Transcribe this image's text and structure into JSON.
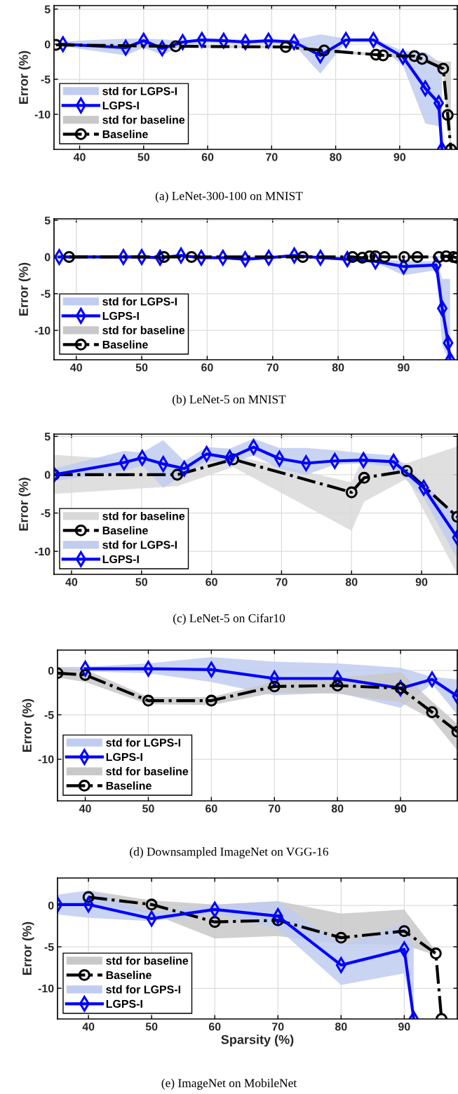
{
  "chart_data": [
    {
      "type": "line",
      "title": "(a) LeNet-300-100 on MNIST",
      "ylabel": "Error (%)",
      "xlim": [
        36,
        99
      ],
      "ylim": [
        -15,
        5.5
      ],
      "xticks": [
        40,
        50,
        60,
        70,
        80,
        90
      ],
      "yticks": [
        -10,
        -5,
        0,
        5
      ],
      "grid": true,
      "legend": "bottom left",
      "series": [
        {
          "name": "std for LGPS-I",
          "type": "area",
          "color": "#c0ccf0",
          "x": [
            37.4,
            47.2,
            50,
            52.9,
            56.1,
            59.1,
            62.5,
            65.9,
            69.5,
            73.5,
            77.6,
            81.6,
            85.9,
            90.5,
            94.0,
            96.1,
            96.6
          ],
          "values": [
            null,
            null,
            null,
            null,
            null,
            null,
            null,
            null,
            null,
            null,
            null,
            null,
            null,
            null,
            null,
            null,
            null
          ],
          "lower": [
            -0.3,
            -1.6,
            -0.5,
            -1.5,
            -0.3,
            0.2,
            0.1,
            0,
            0.1,
            -0.1,
            -4.2,
            0.3,
            0.2,
            -3.0,
            -11.3,
            -11.7,
            -15
          ],
          "upper": [
            0.4,
            0.8,
            0.8,
            0.7,
            0.5,
            0.9,
            0.8,
            0.6,
            0.8,
            0.6,
            1.4,
            0.8,
            0.9,
            -1.0,
            -1.1,
            -2.5,
            -2.5
          ]
        },
        {
          "name": "LGPS-I",
          "color": "#0000ff",
          "marker": "diamond",
          "line_style": "solid",
          "x": [
            37.4,
            47.2,
            50,
            52.9,
            56.1,
            59.1,
            62.5,
            65.9,
            69.5,
            73.5,
            77.6,
            81.6,
            85.9,
            90.5,
            94.0,
            96.1,
            96.6
          ],
          "values": [
            0,
            -0.5,
            0.5,
            -0.6,
            0.3,
            0.6,
            0.5,
            0.3,
            0.5,
            0.3,
            -1.6,
            0.6,
            0.6,
            -1.8,
            -6.3,
            -8.4,
            -15
          ]
        },
        {
          "name": "std for baseline",
          "type": "area",
          "color": "#c8c8c8",
          "x": [
            36.3,
            55.0,
            72.2,
            78.2,
            86.3,
            87.4,
            92.3,
            93.5,
            96.8,
            97.5,
            98.0
          ],
          "values": [
            null,
            null,
            null,
            null,
            null,
            null,
            null,
            null,
            null,
            null,
            null
          ],
          "lower": [
            -0.3,
            -0.5,
            -0.6,
            -1.1,
            -1.7,
            -1.8,
            -1.9,
            -2.3,
            -3.8,
            -12,
            -15
          ],
          "upper": [
            0.1,
            -0.1,
            -0.2,
            -0.7,
            -1.3,
            -1.4,
            -1.5,
            -1.9,
            -2.5,
            -2.5,
            -2.5
          ]
        },
        {
          "name": "Baseline",
          "color": "#000000",
          "marker": "circle",
          "line_style": "dashdot",
          "x": [
            36.3,
            55.0,
            72.2,
            78.2,
            86.3,
            87.4,
            92.3,
            93.5,
            96.8,
            97.5,
            98.0
          ],
          "values": [
            -0.1,
            -0.3,
            -0.4,
            -0.9,
            -1.5,
            -1.6,
            -1.7,
            -2.1,
            -3.5,
            -10.1,
            -15
          ]
        }
      ]
    },
    {
      "type": "line",
      "title": "(b) LeNet-5 on MNIST",
      "ylabel": "Error (%)",
      "xlim": [
        36.6,
        98.2
      ],
      "ylim": [
        -14,
        5.2
      ],
      "xticks": [
        40,
        50,
        60,
        70,
        80,
        90
      ],
      "yticks": [
        -10,
        -5,
        0,
        5
      ],
      "grid": true,
      "legend": "bottom left",
      "series": [
        {
          "name": "std for LGPS-I",
          "type": "area",
          "color": "#c0ccf0",
          "x": [
            37.4,
            47.2,
            50,
            52.8,
            56.0,
            59.1,
            62.4,
            65.8,
            69.4,
            73.3,
            77.3,
            81.4,
            85.7,
            90,
            95.0,
            95.9,
            96.8,
            97.1
          ],
          "values": [
            null,
            null,
            null,
            null,
            null,
            null,
            null,
            null,
            null,
            null,
            null,
            null,
            null,
            null,
            null,
            null,
            null,
            null
          ],
          "lower": [
            -0.2,
            -0.2,
            -0.2,
            -0.3,
            0,
            -0.3,
            -0.3,
            -0.5,
            -0.3,
            0,
            -0.3,
            -0.5,
            -0.8,
            -2.5,
            -1.8,
            -12,
            -14,
            -14
          ],
          "upper": [
            0.2,
            0.2,
            0.2,
            0.1,
            0.4,
            0.1,
            0.1,
            -0.1,
            0.1,
            0.4,
            0.1,
            -0.1,
            -0.4,
            -0.5,
            -0.6,
            -3,
            -3,
            -3
          ]
        },
        {
          "name": "LGPS-I",
          "color": "#0000ff",
          "marker": "diamond",
          "line_style": "solid",
          "x": [
            37.4,
            47.2,
            50,
            52.8,
            56.0,
            59.1,
            62.4,
            65.8,
            69.4,
            73.3,
            77.3,
            81.4,
            85.7,
            90,
            95.0,
            95.9,
            96.8,
            97.1
          ],
          "values": [
            0,
            0,
            0,
            -0.1,
            0.2,
            -0.1,
            -0.1,
            -0.3,
            -0.1,
            0.2,
            -0.1,
            -0.3,
            -0.6,
            -1.3,
            -1.1,
            -7.0,
            -11.7,
            -14
          ]
        },
        {
          "name": "std for baseline",
          "type": "area",
          "color": "#c8c8c8",
          "x": [
            38.9,
            53.4,
            57.6,
            74.6,
            82.2,
            83.7,
            84.8,
            85.7,
            87.1,
            90.1,
            92.1,
            95.4,
            96.5,
            97.6,
            98.1
          ],
          "values": [
            null,
            null,
            null,
            null,
            null,
            null,
            null,
            null,
            null,
            null,
            null,
            null,
            null,
            null,
            null
          ],
          "lower": [
            -0.1,
            -0.1,
            -0.1,
            -0.1,
            -0.1,
            -0.2,
            0,
            0,
            -0.1,
            -0.1,
            -0.1,
            -0.1,
            0,
            -0.1,
            -0.2
          ],
          "upper": [
            0.1,
            0.1,
            0.1,
            0.1,
            0.1,
            0,
            0.2,
            0.2,
            0.1,
            0.1,
            0.1,
            0.1,
            0.2,
            0.1,
            0
          ]
        },
        {
          "name": "Baseline",
          "color": "#000000",
          "marker": "circle",
          "line_style": "dashdot",
          "x": [
            38.9,
            53.4,
            57.6,
            74.6,
            82.2,
            83.7,
            84.8,
            85.7,
            87.1,
            90.1,
            92.1,
            95.4,
            96.5,
            97.6,
            98.1
          ],
          "values": [
            0,
            0,
            0,
            0,
            0,
            -0.1,
            0.1,
            0.1,
            0,
            0,
            0,
            0,
            0.1,
            0,
            -0.1
          ]
        }
      ]
    },
    {
      "type": "line",
      "title": "(c) LeNet-5 on Cifar10",
      "ylabel": "Error (%)",
      "xlim": [
        37.5,
        95.1
      ],
      "ylim": [
        -13,
        5.3
      ],
      "xticks": [
        40,
        50,
        60,
        70,
        80,
        90
      ],
      "yticks": [
        -10,
        -5,
        0,
        5
      ],
      "grid": true,
      "legend": "bottom left",
      "series": [
        {
          "name": "std for baseline",
          "type": "area",
          "color": "#d9d9d9",
          "x": [
            37.5,
            55.1,
            63.1,
            80.0,
            81.8,
            87.9,
            95.1
          ],
          "values": [
            null,
            null,
            null,
            null,
            null,
            null,
            null
          ],
          "lower": [
            -2.5,
            -1.5,
            1.0,
            -7.3,
            -3.5,
            -0.5,
            -13
          ],
          "upper": [
            2.6,
            1.5,
            2.5,
            -1.0,
            2.5,
            1.5,
            3.7
          ]
        },
        {
          "name": "Baseline",
          "color": "#000000",
          "marker": "circle",
          "line_style": "dashdot",
          "x": [
            37.5,
            55.1,
            63.1,
            80.0,
            81.8,
            87.9,
            95.1
          ],
          "values": [
            0,
            0,
            2.0,
            -2.3,
            -0.4,
            0.5,
            -5.5
          ]
        },
        {
          "name": "std for LGPS-I",
          "type": "area",
          "color": "#c0ccf0",
          "x": [
            37.5,
            47.5,
            50.1,
            53.1,
            56.1,
            59.3,
            62.6,
            66.0,
            69.7,
            73.5,
            77.6,
            81.7,
            86.0,
            90.3,
            95.1
          ],
          "values": [
            null,
            null,
            null,
            null,
            null,
            null,
            null,
            null,
            null,
            null,
            null,
            null,
            null,
            null,
            null
          ],
          "lower": [
            -0.8,
            0.5,
            1.2,
            -1.7,
            0,
            1.8,
            1.5,
            2.5,
            0.8,
            0,
            1.3,
            1.5,
            1.0,
            -3.0,
            -11
          ],
          "upper": [
            0.8,
            3.1,
            2.9,
            4.5,
            1.8,
            3.6,
            3.4,
            4.7,
            3.5,
            3.5,
            3.2,
            2.8,
            2.5,
            -1.0,
            -5.5
          ]
        },
        {
          "name": "LGPS-I",
          "color": "#0000ff",
          "marker": "diamond",
          "line_style": "solid",
          "x": [
            37.5,
            47.5,
            50.1,
            53.1,
            56.1,
            59.3,
            62.6,
            66.0,
            69.7,
            73.5,
            77.6,
            81.7,
            86.0,
            90.3,
            95.1
          ],
          "values": [
            0,
            1.6,
            2.2,
            1.4,
            0.8,
            2.7,
            2.2,
            3.6,
            2.1,
            1.5,
            1.8,
            1.9,
            1.7,
            -1.7,
            -8.2
          ]
        }
      ]
    },
    {
      "type": "line",
      "title": "(d) Downsampled ImageNet on VGG-16",
      "ylabel": "Error (%)",
      "xlim": [
        35.6,
        99
      ],
      "ylim": [
        -14.7,
        2.3
      ],
      "xticks": [
        40,
        50,
        60,
        70,
        80,
        90
      ],
      "yticks": [
        -10,
        -5,
        0
      ],
      "grid": true,
      "legend": "bottom left",
      "series": [
        {
          "name": "std for LGPS-I",
          "type": "area",
          "color": "#c0ccf0",
          "x": [
            35.6,
            40,
            50,
            60,
            70,
            80,
            90,
            95,
            99
          ],
          "values": [
            null,
            null,
            null,
            null,
            null,
            null,
            null,
            null,
            null
          ],
          "lower": [
            -0.1,
            -0.1,
            -0.3,
            -1.3,
            -2.8,
            -2.5,
            -4.2,
            -1.5,
            -5
          ],
          "upper": [
            0.4,
            0.4,
            0.8,
            1.5,
            1.0,
            0.8,
            0.3,
            -0.7,
            -1
          ]
        },
        {
          "name": "LGPS-I",
          "color": "#0000ff",
          "marker": "diamond",
          "line_style": "solid",
          "x": [
            40,
            50,
            60,
            70,
            80,
            90,
            95,
            99
          ],
          "values": [
            0.2,
            0.2,
            0.1,
            -0.9,
            -0.9,
            -2.0,
            -1.0,
            -2.9
          ]
        },
        {
          "name": "std for baseline",
          "type": "area",
          "color": "#c8c8c8",
          "x": [
            35.6,
            40,
            50,
            60,
            70,
            80,
            90,
            95,
            99
          ],
          "values": [
            null,
            null,
            null,
            null,
            null,
            null,
            null,
            null,
            null
          ],
          "lower": [
            -0.8,
            -1.3,
            -3.8,
            -3.9,
            -2.5,
            -2.6,
            -3.6,
            -5.5,
            -9
          ],
          "upper": [
            0.3,
            0.1,
            -3.0,
            -3.0,
            -1.3,
            -0.8,
            -0.2,
            -3.5,
            -6
          ]
        },
        {
          "name": "Baseline",
          "color": "#000000",
          "marker": "circle",
          "line_style": "dashdot",
          "x": [
            35.6,
            40,
            50,
            60,
            70,
            80,
            90,
            95,
            99
          ],
          "values": [
            -0.3,
            -0.5,
            -3.4,
            -3.4,
            -1.8,
            -1.7,
            -2.0,
            -4.7,
            -6.9
          ]
        }
      ]
    },
    {
      "type": "line",
      "title": "(e) ImageNet on MobileNet",
      "xlabel": "Sparsity (%)",
      "ylabel": "Error (%)",
      "xlim": [
        35.1,
        98.4
      ],
      "ylim": [
        -13.7,
        3.3
      ],
      "xticks": [
        40,
        50,
        60,
        70,
        80,
        90
      ],
      "yticks": [
        -10,
        -5,
        0
      ],
      "grid": true,
      "legend": "bottom left",
      "series": [
        {
          "name": "std for baseline",
          "type": "area",
          "color": "#c8c8c8",
          "x": [
            40,
            50,
            60,
            70,
            80,
            90,
            95
          ],
          "values": [
            null,
            null,
            null,
            null,
            null,
            null,
            null
          ],
          "lower": [
            0.2,
            -1.0,
            -4.0,
            -3.7,
            -4.7,
            -4.8,
            -6.0
          ],
          "upper": [
            1.8,
            0.6,
            0.1,
            0.5,
            -1.0,
            -0.5,
            -5.5
          ]
        },
        {
          "name": "Baseline",
          "color": "#000000",
          "marker": "circle",
          "line_style": "dashdot",
          "x": [
            40,
            50,
            60,
            70,
            80,
            90,
            95,
            95.9
          ],
          "values": [
            1.0,
            0.1,
            -2.0,
            -1.8,
            -3.9,
            -3.1,
            -5.8,
            -13.7
          ]
        },
        {
          "name": "std for LGPS-I",
          "type": "area",
          "color": "#c0ccf0",
          "x": [
            35.1,
            40,
            50,
            60,
            70,
            80,
            90,
            91.5
          ],
          "values": [
            null,
            null,
            null,
            null,
            null,
            null,
            null,
            null
          ],
          "lower": [
            -1.1,
            -1.5,
            -1.9,
            -1.0,
            -2.8,
            -9.6,
            -8.2,
            -13.7
          ],
          "upper": [
            1.3,
            1.8,
            -0.8,
            0.0,
            0.5,
            -4.7,
            -2.2,
            -5.0
          ]
        },
        {
          "name": "LGPS-I",
          "color": "#0000ff",
          "marker": "diamond",
          "line_style": "solid",
          "x": [
            35.1,
            40,
            50,
            60,
            70,
            80,
            90,
            91.5
          ],
          "values": [
            0.1,
            0.1,
            -1.6,
            -0.5,
            -1.3,
            -7.2,
            -5.3,
            -13.7
          ]
        }
      ]
    }
  ]
}
